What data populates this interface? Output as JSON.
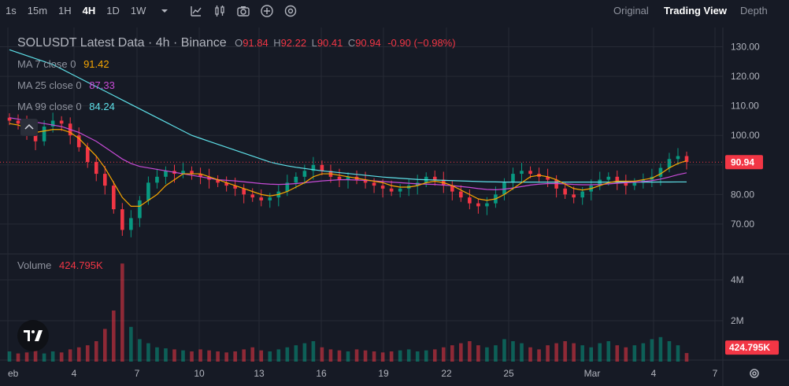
{
  "toolbar": {
    "timeframes": [
      "1s",
      "15m",
      "1H",
      "4H",
      "1D",
      "1W"
    ],
    "active_timeframe": "4H",
    "icons": [
      "chevron-down-icon",
      "indicators-icon",
      "candle-type-icon",
      "camera-icon",
      "add-icon",
      "settings-icon"
    ],
    "views": [
      "Original",
      "Trading View",
      "Depth"
    ],
    "active_view": "Trading View"
  },
  "legend": {
    "title": "SOLUSDT Latest Data · 4h · Binance",
    "ohlc": {
      "o_label": "O",
      "o": "91.84",
      "h_label": "H",
      "h": "92.22",
      "l_label": "L",
      "l": "90.41",
      "c_label": "C",
      "c": "90.94",
      "change": "-0.90 (−0.98%)"
    },
    "ma7": {
      "label": "MA 7 close 0",
      "value": "91.42",
      "color": "#f7a600"
    },
    "ma25": {
      "label": "MA 25 close 0",
      "value": "87.33",
      "color": "#c74bd6"
    },
    "ma99": {
      "label": "MA 99 close 0",
      "value": "84.24",
      "color": "#5ee0e8"
    },
    "volume": {
      "label": "Volume",
      "value": "424.795K"
    }
  },
  "colors": {
    "up": "#089981",
    "down": "#f23645",
    "ma7": "#f7a600",
    "ma25": "#c74bd6",
    "ma99": "#5ee0e8",
    "background": "#161a25",
    "grid": "#262a35"
  },
  "chart_data": {
    "type": "candlestick",
    "symbol": "SOLUSDT",
    "interval": "4h",
    "exchange": "Binance",
    "price_axis": {
      "ticks": [
        "130.00",
        "120.00",
        "110.00",
        "100.00",
        "90.00",
        "80.00",
        "70.00"
      ],
      "range": [
        62,
        136
      ]
    },
    "volume_axis": {
      "ticks": [
        "4M",
        "2M"
      ]
    },
    "x_ticks": [
      "eb",
      "4",
      "7",
      "10",
      "13",
      "16",
      "19",
      "22",
      "25",
      "Mar",
      "4",
      "7"
    ],
    "last_price": "90.94",
    "last_volume": "424.795K",
    "last_candle": {
      "open": 91.84,
      "high": 92.22,
      "low": 90.41,
      "close": 90.94
    },
    "close_series": [
      105,
      104,
      101,
      98,
      103,
      105,
      104,
      100,
      96,
      91,
      87,
      83,
      75,
      68,
      72,
      78,
      84,
      86,
      88,
      87,
      88,
      87,
      86,
      85,
      84,
      83,
      82,
      80,
      79,
      78,
      79,
      81,
      84,
      86,
      88,
      90,
      88,
      86,
      85,
      86,
      85,
      84,
      83,
      82,
      81,
      82,
      83,
      84,
      86,
      85,
      83,
      81,
      79,
      77,
      76,
      77,
      80,
      84,
      87,
      88,
      87,
      86,
      85,
      82,
      80,
      79,
      81,
      83,
      85,
      86,
      84,
      83,
      84,
      85,
      86,
      89,
      92,
      93,
      91
    ],
    "volume_series": [
      0.5,
      0.4,
      0.45,
      0.55,
      0.4,
      0.5,
      0.45,
      0.6,
      0.7,
      0.8,
      1.0,
      1.6,
      2.5,
      4.8,
      1.7,
      1.1,
      0.9,
      0.7,
      0.65,
      0.6,
      0.55,
      0.5,
      0.6,
      0.55,
      0.5,
      0.45,
      0.5,
      0.6,
      0.7,
      0.55,
      0.5,
      0.6,
      0.7,
      0.8,
      0.9,
      1.0,
      0.7,
      0.6,
      0.55,
      0.5,
      0.6,
      0.55,
      0.5,
      0.45,
      0.5,
      0.55,
      0.6,
      0.5,
      0.55,
      0.6,
      0.7,
      0.8,
      0.9,
      1.0,
      0.8,
      0.7,
      0.8,
      1.1,
      1.0,
      0.9,
      0.7,
      0.6,
      0.8,
      0.9,
      1.0,
      0.9,
      0.8,
      0.7,
      0.9,
      1.0,
      0.8,
      0.7,
      0.8,
      0.9,
      1.1,
      1.2,
      1.0,
      0.8,
      0.42
    ],
    "ma7_series": [
      104,
      103.5,
      102.5,
      101,
      101.5,
      102,
      102,
      101,
      99,
      96,
      93,
      89,
      84,
      79,
      76,
      76,
      78,
      80,
      83,
      85,
      87,
      87,
      87,
      86,
      85,
      84,
      83,
      82,
      81,
      80,
      79.5,
      80,
      81,
      82.5,
      84,
      86,
      87,
      87,
      86.5,
      86,
      85.5,
      85,
      84.5,
      84,
      83,
      82.5,
      82.5,
      83,
      84,
      84.5,
      84,
      83,
      81.5,
      80,
      78.5,
      78,
      78.5,
      80,
      82,
      84,
      86,
      86.5,
      86,
      85,
      83.5,
      82,
      81.5,
      82,
      83,
      84,
      84.5,
      84.5,
      84.5,
      85,
      85.5,
      87,
      89,
      90.5,
      91.42
    ],
    "ma25_series": [
      106,
      105.5,
      105,
      104.5,
      104,
      103.5,
      103,
      102,
      101,
      99.5,
      98,
      96,
      94,
      92,
      90.5,
      89.5,
      89,
      88.5,
      88,
      87.5,
      87,
      86.5,
      86,
      85.5,
      85,
      84.8,
      84.6,
      84.3,
      84,
      83.7,
      83.5,
      83.4,
      83.5,
      83.7,
      84,
      84.3,
      84.6,
      84.8,
      85,
      85,
      84.9,
      84.8,
      84.6,
      84.4,
      84.2,
      84,
      83.8,
      83.6,
      83.5,
      83.4,
      83.2,
      83,
      82.7,
      82.4,
      82,
      81.7,
      81.6,
      81.8,
      82.2,
      82.7,
      83.2,
      83.5,
      83.7,
      83.7,
      83.6,
      83.4,
      83.3,
      83.3,
      83.4,
      83.6,
      83.8,
      84,
      84.2,
      84.4,
      84.7,
      85.2,
      85.9,
      86.7,
      87.33
    ],
    "ma99_series": [
      129,
      128,
      127,
      126,
      125,
      124,
      122.5,
      121,
      119.5,
      118,
      116.5,
      115,
      113.5,
      112,
      110.5,
      109,
      107.5,
      106,
      104.5,
      103,
      101.5,
      100,
      99,
      98,
      97,
      96,
      95,
      94,
      93,
      92,
      91,
      90.3,
      89.7,
      89.2,
      88.8,
      88.4,
      88,
      87.7,
      87.4,
      87.1,
      86.8,
      86.5,
      86.2,
      85.9,
      85.7,
      85.5,
      85.3,
      85.1,
      85,
      84.9,
      84.8,
      84.7,
      84.6,
      84.5,
      84.4,
      84.3,
      84.25,
      84.2,
      84.2,
      84.2,
      84.2,
      84.2,
      84.2,
      84.2,
      84.2,
      84.2,
      84.2,
      84.2,
      84.2,
      84.2,
      84.2,
      84.2,
      84.2,
      84.2,
      84.2,
      84.22,
      84.23,
      84.24,
      84.24
    ]
  }
}
